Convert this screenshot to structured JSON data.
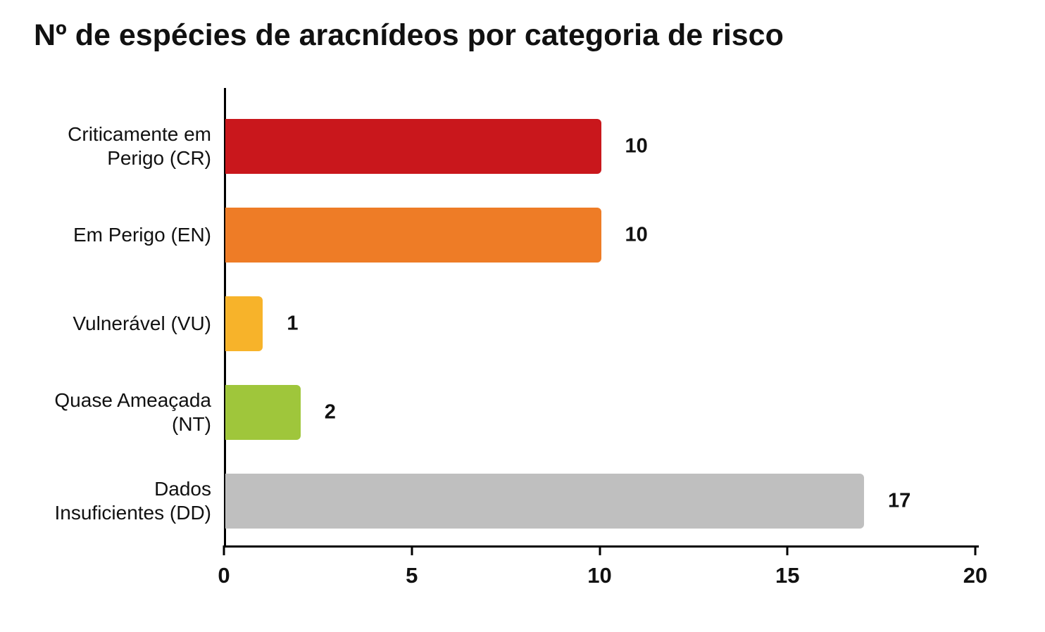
{
  "title": "Nº de espécies de aracnídeos por categoria de risco",
  "chart_data": {
    "type": "bar",
    "orientation": "horizontal",
    "title": "Nº de espécies de aracnídeos por categoria de risco",
    "categories": [
      "Criticamente em\nPerigo (CR)",
      "Em Perigo (EN)",
      "Vulnerável (VU)",
      "Quase Ameaçada\n(NT)",
      "Dados\nInsuficientes (DD)"
    ],
    "values": [
      10,
      10,
      1,
      2,
      17
    ],
    "value_labels": [
      "10",
      "10",
      "1",
      "2",
      "17"
    ],
    "bar_colors": [
      "#c9171c",
      "#ee7c26",
      "#f7b32a",
      "#9fc63b",
      "#bfbfbf"
    ],
    "xlabel": "",
    "ylabel": "",
    "xlim": [
      0,
      20
    ],
    "xticks": [
      "0",
      "5",
      "10",
      "15",
      "20"
    ],
    "grid": false,
    "legend": false,
    "axis_color": "#000000",
    "text_color": "#111111",
    "background_color": "#ffffff"
  }
}
